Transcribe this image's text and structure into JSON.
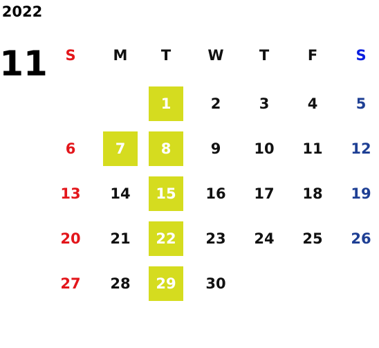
{
  "year": "2022",
  "month": "11",
  "weekdays": [
    "S",
    "M",
    "T",
    "W",
    "T",
    "F",
    "S"
  ],
  "weeks": [
    [
      null,
      null,
      {
        "label": "1",
        "highlight": true
      },
      "2",
      "3",
      "4",
      "5"
    ],
    [
      "6",
      {
        "label": "7",
        "highlight": true
      },
      {
        "label": "8",
        "highlight": true
      },
      "9",
      "10",
      "11",
      "12"
    ],
    [
      "13",
      "14",
      {
        "label": "15",
        "highlight": true
      },
      "16",
      "17",
      "18",
      "19"
    ],
    [
      "20",
      "21",
      {
        "label": "22",
        "highlight": true
      },
      "23",
      "24",
      "25",
      "26"
    ],
    [
      "27",
      "28",
      {
        "label": "29",
        "highlight": true
      },
      "30",
      null,
      null,
      null
    ]
  ]
}
